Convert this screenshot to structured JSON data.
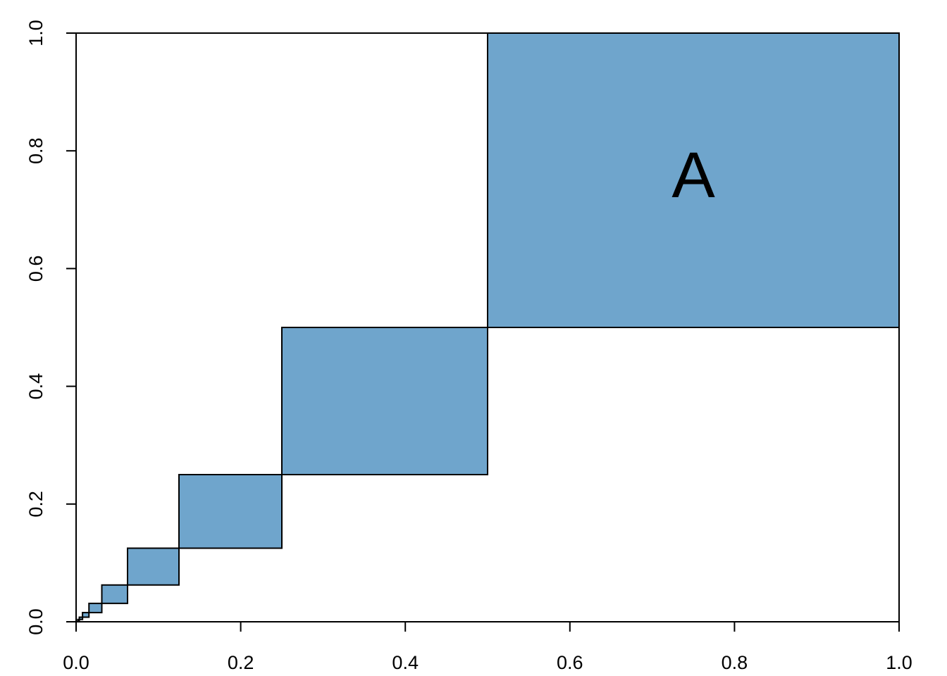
{
  "chart_data": {
    "type": "bar",
    "title": "",
    "xlabel": "",
    "ylabel": "",
    "xlim": [
      0,
      1
    ],
    "ylim": [
      0,
      1
    ],
    "grid": false,
    "x_ticks": [
      "0.0",
      "0.2",
      "0.4",
      "0.6",
      "0.8",
      "1.0"
    ],
    "y_ticks": [
      "0.0",
      "0.2",
      "0.4",
      "0.6",
      "0.8",
      "1.0"
    ],
    "fill_color": "#6fa5cc",
    "edge_color": "#000000",
    "rectangles": [
      {
        "x0": 0.5,
        "x1": 1.0,
        "y0": 0.5,
        "y1": 1.0
      },
      {
        "x0": 0.25,
        "x1": 0.5,
        "y0": 0.25,
        "y1": 0.5
      },
      {
        "x0": 0.125,
        "x1": 0.25,
        "y0": 0.125,
        "y1": 0.25
      },
      {
        "x0": 0.0625,
        "x1": 0.125,
        "y0": 0.0625,
        "y1": 0.125
      },
      {
        "x0": 0.03125,
        "x1": 0.0625,
        "y0": 0.03125,
        "y1": 0.0625
      },
      {
        "x0": 0.015625,
        "x1": 0.03125,
        "y0": 0.015625,
        "y1": 0.03125
      },
      {
        "x0": 0.0078125,
        "x1": 0.015625,
        "y0": 0.0078125,
        "y1": 0.015625
      },
      {
        "x0": 0.00390625,
        "x1": 0.0078125,
        "y0": 0.00390625,
        "y1": 0.0078125
      },
      {
        "x0": 0.001953125,
        "x1": 0.00390625,
        "y0": 0.001953125,
        "y1": 0.00390625
      }
    ],
    "annotations": [
      {
        "text": "A",
        "x": 0.75,
        "y": 0.75
      }
    ]
  }
}
